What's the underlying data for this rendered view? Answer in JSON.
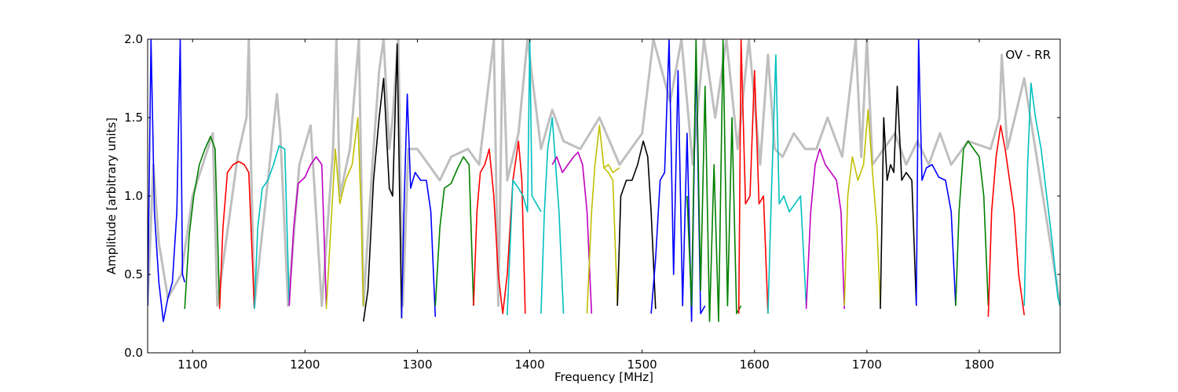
{
  "chart_data": {
    "type": "line",
    "title": "",
    "annotation": "OV - RR",
    "xlabel": "Frequency [MHz]",
    "ylabel": "Amplitude [arbitrary units]",
    "xlim": [
      1060,
      1872
    ],
    "ylim": [
      0.0,
      2.0
    ],
    "xticks": [
      1100,
      1200,
      1300,
      1400,
      1500,
      1600,
      1700,
      1800
    ],
    "xtick_labels": [
      "1100",
      "1200",
      "1300",
      "1400",
      "1500",
      "1600",
      "1700",
      "1800"
    ],
    "yticks": [
      0.0,
      0.5,
      1.0,
      1.5,
      2.0
    ],
    "ytick_labels": [
      "0.0",
      "0.5",
      "1.0",
      "1.5",
      "2.0"
    ],
    "grid": false,
    "colors": {
      "background_envelope": "#bfbfbf",
      "cycle": [
        "#0000ff",
        "#008000",
        "#ff0000",
        "#00bfbf",
        "#bf00bf",
        "#bfbf00",
        "#000000"
      ]
    },
    "series": [
      {
        "color": "#0000ff",
        "x": [
          1060,
          1063,
          1066,
          1070,
          1074,
          1078,
          1082,
          1086,
          1089,
          1091,
          1093
        ],
        "y": [
          0.3,
          2.0,
          0.9,
          0.45,
          0.2,
          0.35,
          0.45,
          0.9,
          2.0,
          0.5,
          0.45
        ]
      },
      {
        "color": "#008000",
        "x": [
          1093,
          1097,
          1101,
          1106,
          1111,
          1116,
          1120,
          1124
        ],
        "y": [
          0.28,
          0.75,
          1.0,
          1.2,
          1.3,
          1.38,
          1.3,
          0.3
        ]
      },
      {
        "color": "#ff0000",
        "x": [
          1124,
          1127,
          1131,
          1136,
          1141,
          1146,
          1150,
          1155
        ],
        "y": [
          0.28,
          0.8,
          1.15,
          1.2,
          1.22,
          1.2,
          1.15,
          0.28
        ]
      },
      {
        "color": "#00bfbf",
        "x": [
          1155,
          1158,
          1162,
          1167,
          1172,
          1177,
          1182,
          1186
        ],
        "y": [
          0.28,
          0.8,
          1.05,
          1.1,
          1.2,
          1.32,
          1.3,
          0.3
        ]
      },
      {
        "color": "#bf00bf",
        "x": [
          1186,
          1190,
          1194,
          1200,
          1205,
          1210,
          1215,
          1219
        ],
        "y": [
          0.3,
          0.8,
          1.08,
          1.12,
          1.2,
          1.25,
          1.2,
          0.3
        ]
      },
      {
        "color": "#bfbf00",
        "x": [
          1219,
          1223,
          1227,
          1231,
          1236,
          1242,
          1247,
          1250,
          1252
        ],
        "y": [
          0.28,
          0.8,
          1.3,
          0.95,
          1.1,
          1.2,
          1.5,
          0.9,
          0.3
        ]
      },
      {
        "color": "#000000",
        "x": [
          1252,
          1256,
          1261,
          1266,
          1270,
          1275,
          1278,
          1282,
          1286
        ],
        "y": [
          0.2,
          0.4,
          1.1,
          1.5,
          1.75,
          1.05,
          1.0,
          1.97,
          0.22
        ]
      },
      {
        "color": "#0000ff",
        "x": [
          1286,
          1288,
          1291,
          1294,
          1298,
          1303,
          1308,
          1312,
          1316
        ],
        "y": [
          0.22,
          0.9,
          1.65,
          1.05,
          1.15,
          1.1,
          1.1,
          0.9,
          0.23
        ]
      },
      {
        "color": "#008000",
        "x": [
          1316,
          1320,
          1324,
          1330,
          1336,
          1341,
          1346,
          1350
        ],
        "y": [
          0.3,
          0.8,
          1.05,
          1.08,
          1.18,
          1.25,
          1.2,
          0.3
        ]
      },
      {
        "color": "#ff0000",
        "x": [
          1350,
          1353,
          1356,
          1360,
          1364,
          1368,
          1372,
          1376,
          1380,
          1385,
          1390,
          1393,
          1396
        ],
        "y": [
          0.3,
          0.9,
          1.15,
          1.2,
          1.3,
          1.0,
          0.5,
          0.25,
          0.5,
          1.1,
          1.35,
          1.1,
          0.25
        ]
      },
      {
        "color": "#00bfbf",
        "x": [
          1380,
          1385,
          1390,
          1394,
          1398,
          1400,
          1402,
          1406,
          1410
        ],
        "y": [
          0.24,
          1.1,
          1.05,
          1.0,
          0.9,
          2.0,
          1.0,
          0.95,
          0.9
        ]
      },
      {
        "color": "#00bfbf",
        "x": [
          1410,
          1413,
          1416,
          1420,
          1423,
          1426,
          1430
        ],
        "y": [
          0.25,
          0.9,
          1.3,
          1.5,
          1.2,
          0.9,
          0.25
        ]
      },
      {
        "color": "#bf00bf",
        "x": [
          1420,
          1424,
          1429,
          1434,
          1439,
          1443,
          1447,
          1451,
          1455
        ],
        "y": [
          1.2,
          1.25,
          1.15,
          1.2,
          1.25,
          1.28,
          1.2,
          0.9,
          0.25
        ]
      },
      {
        "color": "#bfbf00",
        "x": [
          1451,
          1455,
          1458,
          1462,
          1466,
          1470,
          1474,
          1478
        ],
        "y": [
          0.25,
          0.9,
          1.2,
          1.45,
          1.18,
          1.15,
          1.1,
          0.3
        ]
      },
      {
        "color": "#bfbf00",
        "x": [
          1466,
          1470,
          1474,
          1480
        ],
        "y": [
          1.18,
          1.2,
          1.15,
          1.18
        ]
      },
      {
        "color": "#000000",
        "x": [
          1478,
          1481,
          1486,
          1491,
          1496,
          1501,
          1505,
          1508,
          1512
        ],
        "y": [
          0.3,
          1.0,
          1.1,
          1.1,
          1.2,
          1.35,
          1.25,
          0.9,
          0.28
        ]
      },
      {
        "color": "#0000ff",
        "x": [
          1508,
          1512,
          1516,
          1520,
          1524,
          1528,
          1532,
          1536,
          1540,
          1544,
          1548,
          1552,
          1556
        ],
        "y": [
          0.25,
          0.6,
          1.1,
          1.15,
          2.0,
          0.5,
          1.8,
          0.3,
          1.4,
          0.2,
          1.9,
          0.25,
          0.3
        ]
      },
      {
        "color": "#008000",
        "x": [
          1540,
          1544,
          1548,
          1552,
          1556,
          1560,
          1564,
          1568,
          1572,
          1576,
          1580,
          1584,
          1588
        ],
        "y": [
          1.0,
          0.3,
          2.0,
          0.4,
          1.7,
          0.2,
          1.2,
          0.2,
          2.0,
          0.3,
          1.5,
          0.25,
          0.3
        ]
      },
      {
        "color": "#ff0000",
        "x": [
          1586,
          1588,
          1592,
          1596,
          1600,
          1604,
          1608,
          1612
        ],
        "y": [
          0.25,
          2.0,
          0.95,
          1.0,
          1.8,
          0.95,
          1.0,
          0.25
        ]
      },
      {
        "color": "#00bfbf",
        "x": [
          1612,
          1615,
          1619,
          1622,
          1626,
          1631,
          1636,
          1641,
          1646
        ],
        "y": [
          0.25,
          1.0,
          1.9,
          0.95,
          1.0,
          0.9,
          0.95,
          1.0,
          0.3
        ]
      },
      {
        "color": "#bf00bf",
        "x": [
          1646,
          1650,
          1654,
          1658,
          1663,
          1668,
          1673,
          1677,
          1680
        ],
        "y": [
          0.28,
          0.9,
          1.2,
          1.3,
          1.2,
          1.15,
          1.1,
          0.9,
          0.28
        ]
      },
      {
        "color": "#bfbf00",
        "x": [
          1680,
          1683,
          1687,
          1692,
          1697,
          1701,
          1705,
          1709,
          1712
        ],
        "y": [
          0.3,
          1.0,
          1.25,
          1.1,
          1.2,
          1.55,
          1.15,
          0.8,
          0.3
        ]
      },
      {
        "color": "#000000",
        "x": [
          1712,
          1715,
          1718,
          1721,
          1724,
          1727,
          1731,
          1735,
          1740,
          1744
        ],
        "y": [
          0.28,
          1.5,
          1.1,
          1.2,
          1.15,
          1.7,
          1.1,
          1.15,
          1.1,
          0.3
        ]
      },
      {
        "color": "#0000ff",
        "x": [
          1744,
          1746,
          1749,
          1753,
          1758,
          1764,
          1770,
          1775,
          1779
        ],
        "y": [
          0.3,
          2.0,
          1.1,
          1.18,
          1.2,
          1.12,
          1.1,
          0.9,
          0.3
        ]
      },
      {
        "color": "#008000",
        "x": [
          1779,
          1782,
          1786,
          1790,
          1795,
          1800,
          1804,
          1808
        ],
        "y": [
          0.3,
          0.9,
          1.3,
          1.35,
          1.3,
          1.25,
          1.0,
          0.3
        ]
      },
      {
        "color": "#ff0000",
        "x": [
          1808,
          1811,
          1815,
          1819,
          1823,
          1827,
          1831,
          1835,
          1840
        ],
        "y": [
          0.23,
          0.9,
          1.25,
          1.45,
          1.3,
          1.1,
          0.9,
          0.5,
          0.24
        ]
      },
      {
        "color": "#00bfbf",
        "x": [
          1840,
          1843,
          1846,
          1850,
          1855,
          1860,
          1865,
          1870,
          1872
        ],
        "y": [
          0.3,
          1.2,
          1.72,
          1.5,
          1.3,
          1.0,
          0.7,
          0.35,
          0.3
        ]
      }
    ],
    "background_envelope": {
      "color": "#bfbfbf",
      "x": [
        1060,
        1065,
        1070,
        1078,
        1090,
        1100,
        1118,
        1122,
        1140,
        1148,
        1150,
        1152,
        1155,
        1170,
        1175,
        1178,
        1185,
        1195,
        1205,
        1215,
        1225,
        1228,
        1231,
        1240,
        1248,
        1252,
        1260,
        1266,
        1270,
        1275,
        1278,
        1283,
        1287,
        1292,
        1300,
        1310,
        1320,
        1330,
        1345,
        1355,
        1368,
        1372,
        1376,
        1380,
        1390,
        1398,
        1410,
        1420,
        1430,
        1445,
        1462,
        1480,
        1500,
        1510,
        1525,
        1535,
        1545,
        1555,
        1565,
        1575,
        1585,
        1595,
        1605,
        1612,
        1618,
        1625,
        1635,
        1645,
        1655,
        1665,
        1678,
        1690,
        1695,
        1700,
        1705,
        1715,
        1725,
        1735,
        1745,
        1755,
        1765,
        1775,
        1790,
        1810,
        1818,
        1820,
        1825,
        1840,
        1872
      ],
      "y": [
        0.3,
        1.2,
        0.7,
        0.35,
        0.5,
        1.0,
        1.4,
        0.3,
        1.25,
        1.5,
        2.0,
        1.2,
        0.3,
        1.3,
        1.65,
        1.4,
        0.3,
        1.2,
        1.45,
        0.3,
        1.3,
        2.0,
        1.0,
        1.3,
        2.0,
        0.3,
        1.2,
        1.8,
        2.0,
        1.3,
        1.5,
        2.0,
        0.3,
        1.3,
        1.3,
        1.2,
        1.1,
        1.25,
        1.3,
        1.2,
        2.0,
        0.3,
        2.0,
        1.1,
        1.4,
        2.0,
        1.3,
        1.55,
        1.35,
        1.3,
        1.5,
        1.2,
        1.4,
        2.0,
        1.6,
        2.0,
        1.2,
        2.0,
        1.5,
        2.0,
        1.3,
        2.0,
        1.2,
        1.9,
        1.3,
        1.25,
        1.4,
        1.3,
        1.3,
        1.5,
        1.25,
        2.0,
        1.25,
        2.0,
        1.2,
        1.3,
        1.4,
        1.2,
        1.35,
        1.2,
        1.4,
        1.2,
        1.35,
        1.3,
        1.5,
        1.9,
        1.3,
        1.75,
        0.3
      ]
    }
  }
}
